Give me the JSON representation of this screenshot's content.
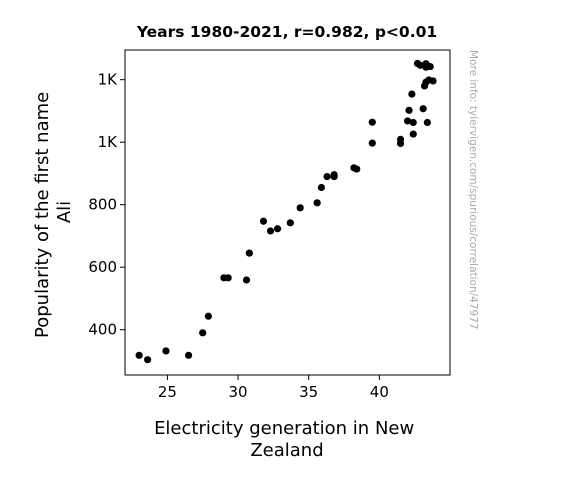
{
  "chart_data": {
    "type": "scatter",
    "title": "Years 1980-2021, r=0.982, p<0.01",
    "xlabel_lines": [
      "Electricity generation in New",
      "Zealand"
    ],
    "ylabel_lines": [
      "Popularity of the first name",
      "Ali"
    ],
    "xlim": [
      22.0,
      45.0
    ],
    "ylim": [
      255,
      1295
    ],
    "x_ticks": [
      25,
      30,
      35,
      40
    ],
    "x_tick_labels": [
      "25",
      "30",
      "35",
      "40"
    ],
    "y_ticks": [
      400,
      600,
      800,
      1000,
      1200
    ],
    "y_tick_labels": [
      "400",
      "600",
      "800",
      "1K",
      "1K"
    ],
    "grid": false,
    "watermark": "More info: tylervigen.com/spurious/correlation/47977",
    "marker_color": "#000000",
    "points": [
      {
        "x": 23.0,
        "y": 318
      },
      {
        "x": 23.6,
        "y": 304
      },
      {
        "x": 24.9,
        "y": 332
      },
      {
        "x": 26.5,
        "y": 318
      },
      {
        "x": 27.5,
        "y": 390
      },
      {
        "x": 27.9,
        "y": 443
      },
      {
        "x": 29.0,
        "y": 566
      },
      {
        "x": 29.3,
        "y": 566
      },
      {
        "x": 30.6,
        "y": 559
      },
      {
        "x": 30.8,
        "y": 645
      },
      {
        "x": 31.8,
        "y": 747
      },
      {
        "x": 32.3,
        "y": 716
      },
      {
        "x": 32.8,
        "y": 723
      },
      {
        "x": 33.7,
        "y": 742
      },
      {
        "x": 34.4,
        "y": 790
      },
      {
        "x": 35.6,
        "y": 806
      },
      {
        "x": 35.9,
        "y": 855
      },
      {
        "x": 36.3,
        "y": 890
      },
      {
        "x": 36.8,
        "y": 890
      },
      {
        "x": 36.8,
        "y": 896
      },
      {
        "x": 38.2,
        "y": 918
      },
      {
        "x": 38.4,
        "y": 914
      },
      {
        "x": 39.5,
        "y": 997
      },
      {
        "x": 39.5,
        "y": 1064
      },
      {
        "x": 41.5,
        "y": 996
      },
      {
        "x": 41.5,
        "y": 1009
      },
      {
        "x": 42.0,
        "y": 1068
      },
      {
        "x": 42.1,
        "y": 1102
      },
      {
        "x": 42.3,
        "y": 1154
      },
      {
        "x": 42.4,
        "y": 1063
      },
      {
        "x": 42.4,
        "y": 1026
      },
      {
        "x": 42.7,
        "y": 1252
      },
      {
        "x": 42.9,
        "y": 1246
      },
      {
        "x": 43.1,
        "y": 1107
      },
      {
        "x": 43.2,
        "y": 1180
      },
      {
        "x": 43.3,
        "y": 1192
      },
      {
        "x": 43.3,
        "y": 1251
      },
      {
        "x": 43.3,
        "y": 1240
      },
      {
        "x": 43.4,
        "y": 1063
      },
      {
        "x": 43.5,
        "y": 1199
      },
      {
        "x": 43.6,
        "y": 1242
      },
      {
        "x": 43.8,
        "y": 1196
      }
    ]
  }
}
